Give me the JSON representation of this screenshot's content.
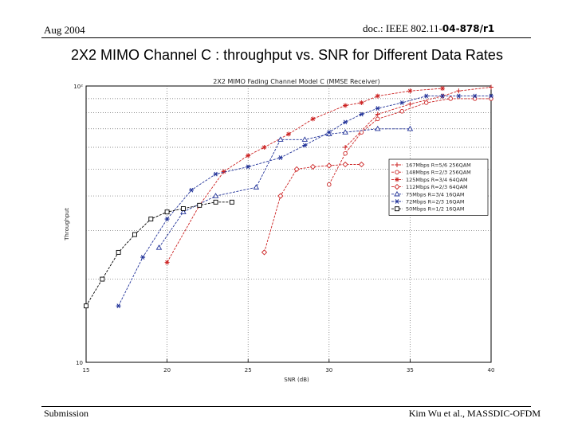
{
  "header": {
    "date": "Aug 2004",
    "doc_prefix": "doc.: IEEE 802.11-",
    "doc_id": "04-878/r1"
  },
  "slide_title": "2X2 MIMO Channel C : throughput vs. SNR for Different Data Rates",
  "footer": {
    "left": "Submission",
    "right": "Kim Wu et al., MASSDIC-OFDM"
  },
  "chart_data": {
    "type": "line",
    "title": "2X2 MIMO Fading Channel Model C (MMSE Receiver)",
    "xlabel": "SNR (dB)",
    "ylabel": "Throughput",
    "xlim": [
      15,
      40
    ],
    "ylim": [
      10,
      100
    ],
    "yscale": "log",
    "xticks": [
      15,
      20,
      25,
      30,
      35,
      40
    ],
    "yticks": [
      10,
      100
    ],
    "ytick_labels": [
      "10",
      "10²"
    ],
    "grid": true,
    "legend_position": "right",
    "series": [
      {
        "name": "167Mbps R=5/6 256QAM",
        "color": "#cc2222",
        "marker": "plus",
        "points": [
          [
            31,
            60
          ],
          [
            33,
            79
          ],
          [
            35,
            86
          ],
          [
            37,
            92
          ],
          [
            38,
            96
          ],
          [
            40,
            99
          ]
        ]
      },
      {
        "name": "148Mbps R=2/3 256QAM",
        "color": "#cc2222",
        "marker": "circle",
        "points": [
          [
            30,
            44
          ],
          [
            31,
            57
          ],
          [
            32,
            68
          ],
          [
            33,
            76
          ],
          [
            34.5,
            81
          ],
          [
            36,
            87
          ],
          [
            37.5,
            90
          ],
          [
            39,
            90
          ],
          [
            40,
            90
          ]
        ]
      },
      {
        "name": "125Mbps R=3/4 64QAM",
        "color": "#cc2222",
        "marker": "star",
        "points": [
          [
            20,
            23
          ],
          [
            22,
            37
          ],
          [
            23.5,
            49
          ],
          [
            25,
            56
          ],
          [
            26,
            60
          ],
          [
            27.5,
            67
          ],
          [
            29,
            76
          ],
          [
            31,
            85
          ],
          [
            32,
            87
          ],
          [
            33,
            92
          ],
          [
            35,
            96
          ],
          [
            37,
            98
          ]
        ]
      },
      {
        "name": "112Mbps R=2/3 64QAM",
        "color": "#cc2222",
        "marker": "diamond",
        "points": [
          [
            26,
            25
          ],
          [
            27,
            40
          ],
          [
            28,
            50
          ],
          [
            29,
            51
          ],
          [
            30,
            51.5
          ],
          [
            31,
            52
          ],
          [
            32,
            52
          ]
        ]
      },
      {
        "name": "75Mbps R=3/4 16QAM",
        "color": "#223399",
        "marker": "triangle",
        "points": [
          [
            19.5,
            26
          ],
          [
            21,
            35
          ],
          [
            23,
            40
          ],
          [
            25.5,
            43
          ],
          [
            27,
            64
          ],
          [
            28.5,
            64
          ],
          [
            30,
            67
          ],
          [
            31,
            68
          ],
          [
            33,
            70
          ],
          [
            35,
            70
          ]
        ]
      },
      {
        "name": "72Mbps R=2/3 16QAM",
        "color": "#223399",
        "marker": "asterisk",
        "points": [
          [
            17,
            16
          ],
          [
            18.5,
            24
          ],
          [
            20,
            33
          ],
          [
            21.5,
            42
          ],
          [
            23,
            48
          ],
          [
            25,
            51
          ],
          [
            27,
            55
          ],
          [
            28.5,
            61
          ],
          [
            30,
            68
          ],
          [
            31,
            74
          ],
          [
            32,
            79
          ],
          [
            33,
            83
          ],
          [
            34.5,
            87
          ],
          [
            36,
            92
          ],
          [
            37,
            92
          ],
          [
            38,
            92
          ],
          [
            39,
            92
          ],
          [
            40,
            92
          ]
        ]
      },
      {
        "name": "50Mbps R=1/2 16QAM",
        "color": "#000000",
        "marker": "square",
        "points": [
          [
            15,
            16
          ],
          [
            16,
            20
          ],
          [
            17,
            25
          ],
          [
            18,
            29
          ],
          [
            19,
            33
          ],
          [
            20,
            35
          ],
          [
            21,
            36
          ],
          [
            22,
            37
          ],
          [
            23,
            38
          ],
          [
            24,
            38
          ]
        ]
      }
    ]
  }
}
